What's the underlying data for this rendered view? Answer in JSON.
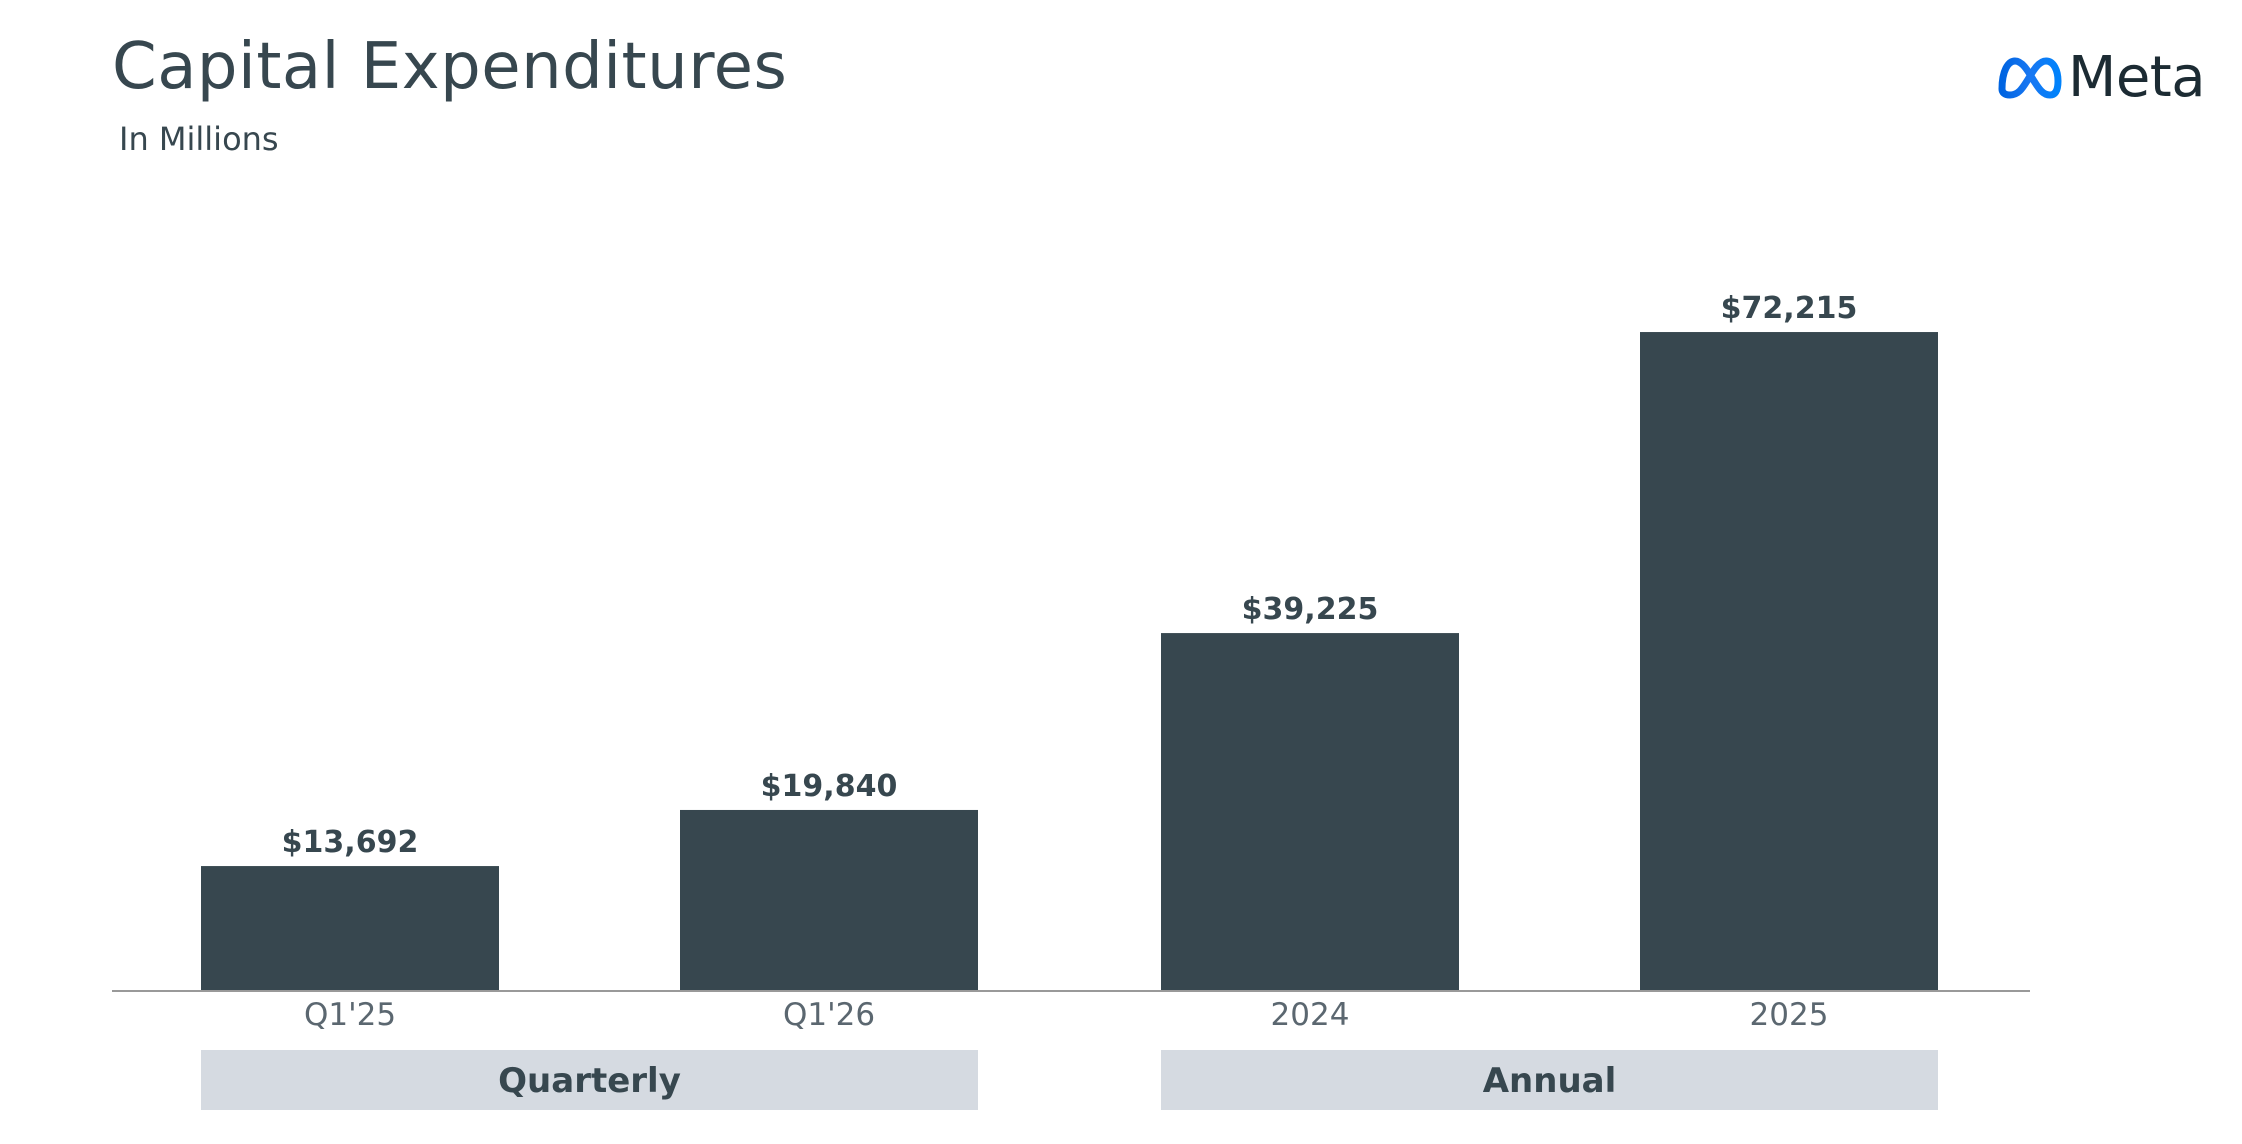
{
  "header": {
    "title": "Capital Expenditures",
    "subtitle": "In Millions"
  },
  "logo": {
    "text": "Meta",
    "icon": "meta-infinity-icon",
    "icon_color": "#1877f2"
  },
  "colors": {
    "bar": "#37474f",
    "axis": "#999999",
    "group_box": "#d5dae1",
    "text": "#37474f"
  },
  "chart_data": {
    "type": "bar",
    "title": "Capital Expenditures",
    "subtitle": "In Millions",
    "categories": [
      "Q1'25",
      "Q1'26",
      "2024",
      "2025"
    ],
    "values": [
      13692,
      19840,
      39225,
      72215
    ],
    "value_labels": [
      "$13,692",
      "$19,840",
      "$39,225",
      "$72,215"
    ],
    "ylim": [
      0,
      80000
    ],
    "groups": [
      {
        "label": "Quarterly",
        "categories": [
          "Q1'25",
          "Q1'26"
        ]
      },
      {
        "label": "Annual",
        "categories": [
          "2024",
          "2025"
        ]
      }
    ],
    "grid": false,
    "legend": "none"
  }
}
